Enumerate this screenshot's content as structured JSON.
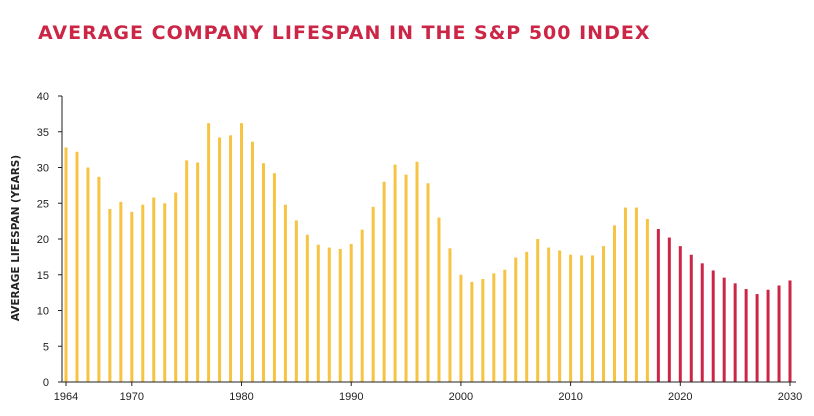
{
  "colors": {
    "title": "#cc2647",
    "historical": "#f6c342",
    "forecast": "#cc2647",
    "axis": "#222222"
  },
  "chart_data": {
    "type": "bar",
    "title": "AVERAGE COMPANY LIFESPAN IN THE S&P 500 INDEX",
    "xlabel": "",
    "ylabel": "AVERAGE LIFESPAN (YEARS)",
    "ylim": [
      0,
      40
    ],
    "yticks": [
      0,
      5,
      10,
      15,
      20,
      25,
      30,
      35,
      40
    ],
    "xlim": [
      1964,
      2030
    ],
    "xticks": [
      1964,
      1970,
      1980,
      1990,
      2000,
      2010,
      2020,
      2030
    ],
    "grid": false,
    "x": [
      1964,
      1965,
      1966,
      1967,
      1968,
      1969,
      1970,
      1971,
      1972,
      1973,
      1974,
      1975,
      1976,
      1977,
      1978,
      1979,
      1980,
      1981,
      1982,
      1983,
      1984,
      1985,
      1986,
      1987,
      1988,
      1989,
      1990,
      1991,
      1992,
      1993,
      1994,
      1995,
      1996,
      1997,
      1998,
      1999,
      2000,
      2001,
      2002,
      2003,
      2004,
      2005,
      2006,
      2007,
      2008,
      2009,
      2010,
      2011,
      2012,
      2013,
      2014,
      2015,
      2016,
      2017,
      2018,
      2019,
      2020,
      2021,
      2022,
      2023,
      2024,
      2025,
      2026,
      2027,
      2028,
      2029,
      2030
    ],
    "values": [
      32.8,
      32.2,
      30.0,
      28.7,
      24.2,
      25.2,
      23.8,
      24.8,
      25.8,
      25.0,
      26.5,
      31.0,
      30.7,
      36.2,
      34.2,
      34.5,
      36.2,
      33.6,
      30.6,
      29.2,
      24.8,
      22.6,
      20.6,
      19.2,
      18.8,
      18.6,
      19.3,
      21.3,
      24.5,
      28.0,
      30.4,
      29.0,
      30.8,
      27.8,
      23.0,
      18.7,
      15.0,
      14.0,
      14.4,
      15.2,
      15.7,
      17.4,
      18.2,
      20.0,
      18.8,
      18.4,
      17.8,
      17.7,
      17.7,
      19.0,
      21.9,
      24.4,
      24.4,
      22.8,
      21.4,
      20.2,
      19.0,
      17.8,
      16.6,
      15.6,
      14.6,
      13.8,
      13.0,
      12.3,
      12.9,
      13.5,
      14.2
    ],
    "forecast_start": 2018
  }
}
